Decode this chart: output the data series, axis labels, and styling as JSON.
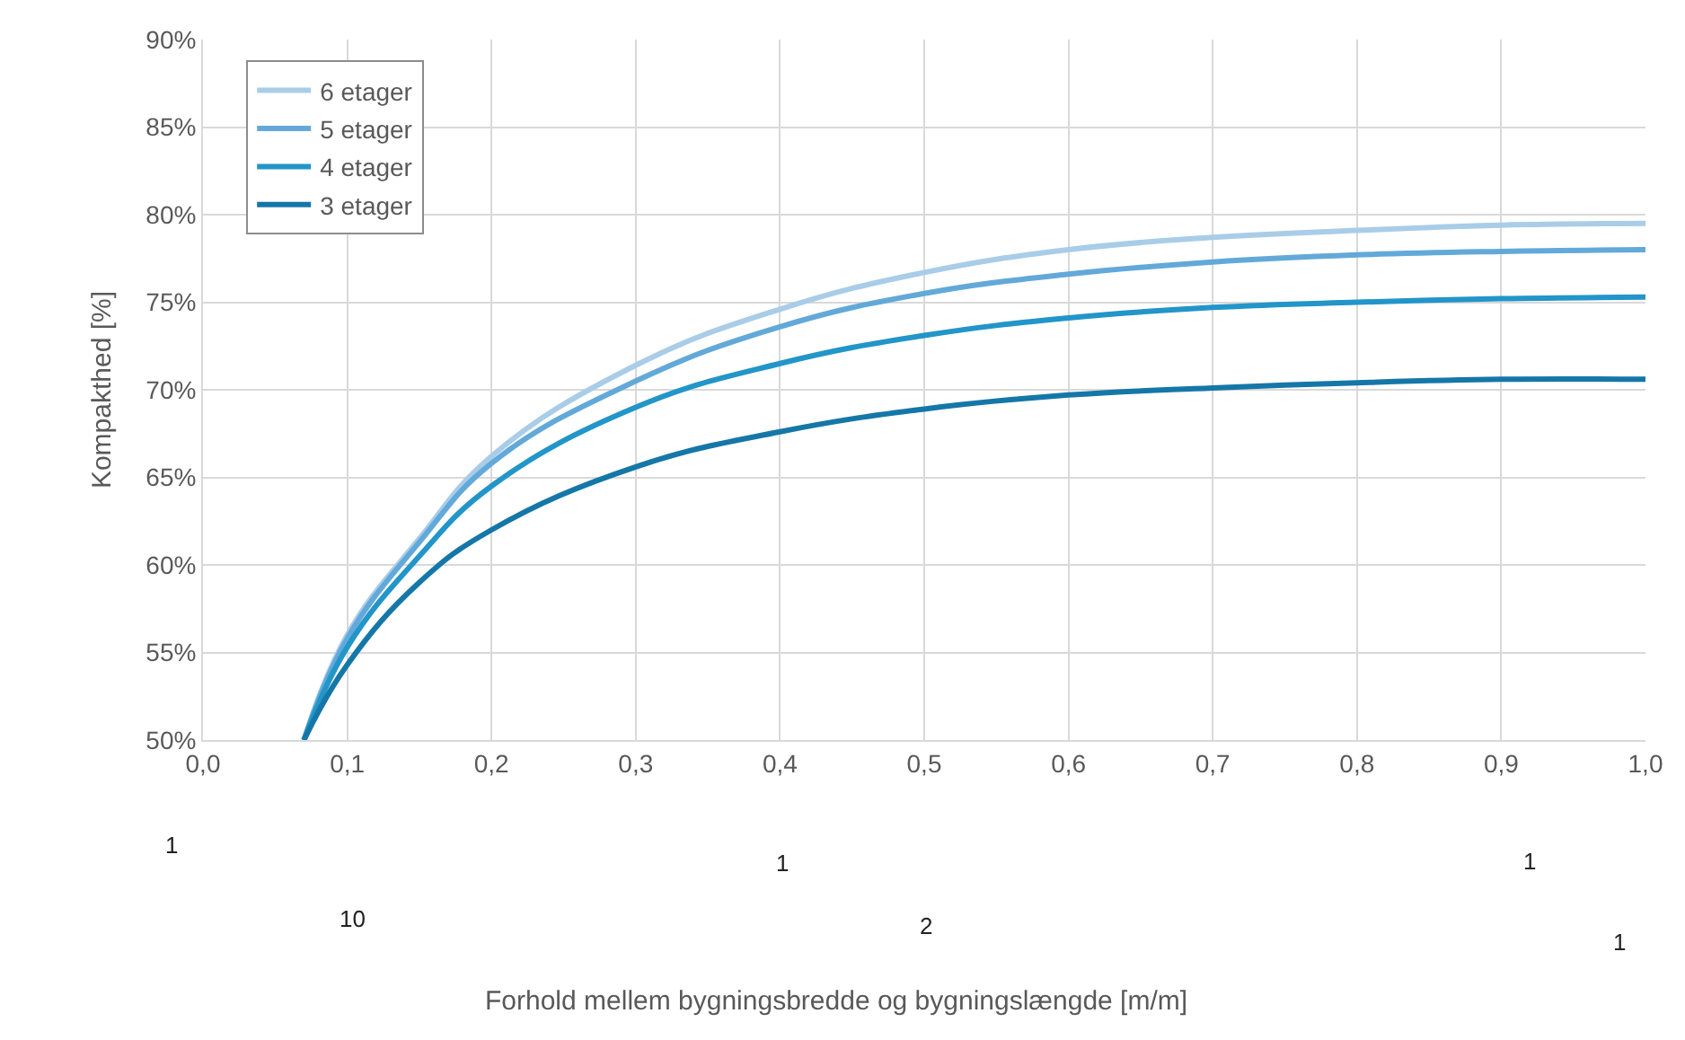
{
  "chart_data": {
    "type": "line",
    "ylabel": "Kompakthed [%]",
    "x": [
      0.07,
      0.1,
      0.15,
      0.2,
      0.3,
      0.4,
      0.5,
      0.6,
      0.7,
      0.8,
      0.9,
      1.0
    ],
    "series": [
      {
        "name": "6 etager",
        "color": "#a9cde8",
        "values": [
          50,
          56,
          61.5,
          66.2,
          71.4,
          74.6,
          76.7,
          78.0,
          78.7,
          79.1,
          79.4,
          79.5
        ]
      },
      {
        "name": "5 etager",
        "color": "#62a9d9",
        "values": [
          50,
          55.8,
          61.3,
          65.8,
          70.5,
          73.6,
          75.5,
          76.6,
          77.3,
          77.7,
          77.9,
          78.0
        ]
      },
      {
        "name": "4 etager",
        "color": "#2295c9",
        "values": [
          50,
          55.3,
          60.5,
          64.5,
          69.0,
          71.5,
          73.1,
          74.1,
          74.7,
          75.0,
          75.2,
          75.3
        ]
      },
      {
        "name": "3 etager",
        "color": "#1577a8",
        "values": [
          50,
          54.3,
          59,
          62,
          65.6,
          67.6,
          68.9,
          69.7,
          70.1,
          70.4,
          70.6,
          70.6
        ]
      }
    ],
    "xlim": [
      0,
      1.0
    ],
    "xticks": [
      {
        "value": 0,
        "label": "0,0"
      },
      {
        "value": 0.1,
        "label": "0,1"
      },
      {
        "value": 0.2,
        "label": "0,2"
      },
      {
        "value": 0.3,
        "label": "0,3"
      },
      {
        "value": 0.4,
        "label": "0,4"
      },
      {
        "value": 0.5,
        "label": "0,5"
      },
      {
        "value": 0.6,
        "label": "0,6"
      },
      {
        "value": 0.7,
        "label": "0,7"
      },
      {
        "value": 0.8,
        "label": "0,8"
      },
      {
        "value": 0.9,
        "label": "0,9"
      },
      {
        "value": 1.0,
        "label": "1,0"
      }
    ],
    "ylim": [
      50,
      90
    ],
    "yticks": [
      {
        "value": 50,
        "label": "50%"
      },
      {
        "value": 55,
        "label": "55%"
      },
      {
        "value": 60,
        "label": "60%"
      },
      {
        "value": 65,
        "label": "65%"
      },
      {
        "value": 70,
        "label": "70%"
      },
      {
        "value": 75,
        "label": "75%"
      },
      {
        "value": 80,
        "label": "80%"
      },
      {
        "value": 85,
        "label": "85%"
      },
      {
        "value": 90,
        "label": "90%"
      }
    ],
    "grid": true,
    "legend": "top left",
    "marker": "none",
    "line_style": "solid",
    "annotations": [
      "1",
      "10",
      "1",
      "2",
      "1",
      "1",
      "Forhold mellem bygningsbredde og bygningslængde [m/m]"
    ]
  }
}
